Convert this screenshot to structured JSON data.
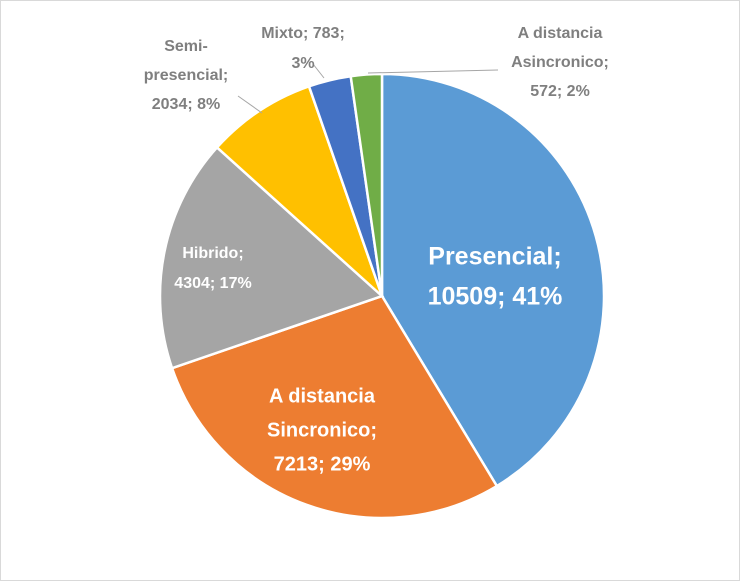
{
  "chart_data": {
    "type": "pie",
    "categories": [
      "Presencial",
      "A distancia Sincronico",
      "Hibrido",
      "Semi-presencial",
      "Mixto",
      "A distancia Asincronico"
    ],
    "values": [
      10509,
      7213,
      4304,
      2034,
      783,
      572
    ],
    "value_labels": [
      [
        "Presencial;",
        "10509; 41%"
      ],
      [
        "A distancia",
        "Sincronico;",
        "7213; 29%"
      ],
      [
        "Hibrido;",
        "4304; 17%"
      ],
      [
        "Semi-",
        "presencial;",
        "2034; 8%"
      ],
      [
        "Mixto; 783;",
        "3%"
      ],
      [
        "A distancia",
        "Asincronico;",
        "572; 2%"
      ]
    ],
    "colors": [
      "#5b9bd5",
      "#ed7d31",
      "#a5a5a5",
      "#ffc000",
      "#4472c4",
      "#70ad47"
    ]
  }
}
